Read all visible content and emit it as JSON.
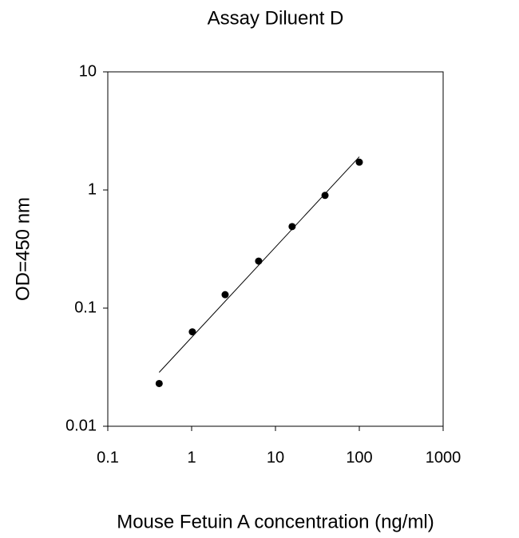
{
  "chart_data": {
    "type": "scatter",
    "title": "Assay Diluent D",
    "x_label": "Mouse Fetuin A concentration (ng/ml)",
    "y_label": "OD=450 nm",
    "x": [
      0.41,
      1.02,
      2.51,
      6.3,
      15.8,
      39,
      100
    ],
    "values": [
      0.023,
      0.063,
      0.13,
      0.25,
      0.49,
      0.9,
      1.72
    ],
    "color": "#000000",
    "xscale": "log",
    "yscale": "log",
    "xlim": [
      0.1,
      1000
    ],
    "ylim": [
      0.01,
      10
    ],
    "xticks": [
      0.1,
      1,
      10,
      100,
      1000
    ],
    "yticks": [
      0.01,
      0.1,
      1,
      10
    ],
    "trendline": "power"
  }
}
